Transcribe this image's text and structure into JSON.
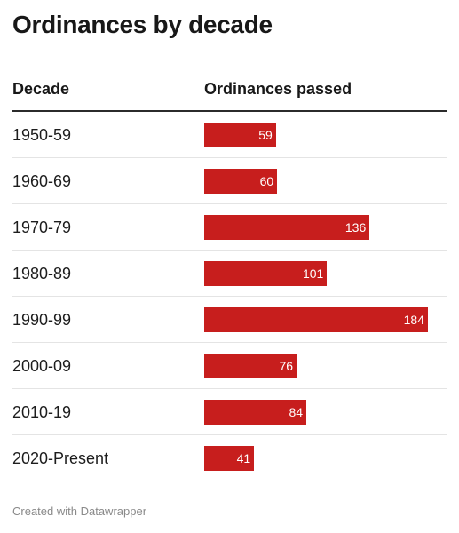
{
  "title": "Ordinances by decade",
  "header": {
    "decade": "Decade",
    "value": "Ordinances passed"
  },
  "colors": {
    "bar": "#c71e1d",
    "bar_label": "#ffffff",
    "header_rule": "#2b2b2b",
    "row_divider": "#e4e4e4"
  },
  "chart_data": {
    "type": "bar",
    "orientation": "horizontal",
    "title": "Ordinances by decade",
    "xlabel": "Ordinances passed",
    "ylabel": "Decade",
    "categories": [
      "1950-59",
      "1960-69",
      "1970-79",
      "1980-89",
      "1990-99",
      "2000-09",
      "2010-19",
      "2020-Present"
    ],
    "values": [
      59,
      60,
      136,
      101,
      184,
      76,
      84,
      41
    ],
    "xlim": [
      0,
      184
    ],
    "grid": false,
    "legend": "none"
  },
  "footer": "Created with Datawrapper"
}
